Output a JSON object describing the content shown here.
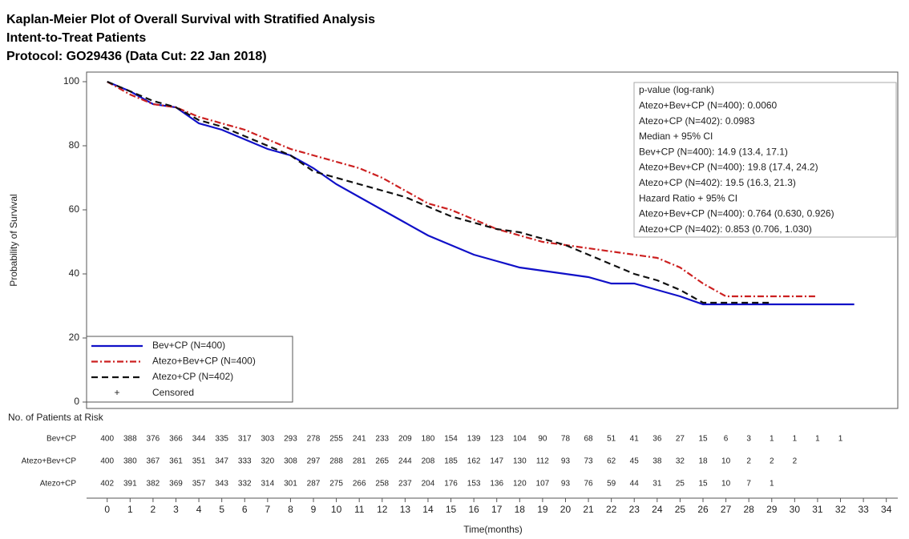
{
  "chart_data": {
    "type": "line",
    "titles": [
      "Kaplan-Meier Plot of Overall Survival with Stratified Analysis",
      "Intent-to-Treat Patients",
      "Protocol: GO29436 (Data Cut: 22 Jan 2018)"
    ],
    "xlabel": "Time(months)",
    "ylabel": "Probability of Survival",
    "xlim": [
      -0.9,
      34.5
    ],
    "ylim": [
      -2,
      103
    ],
    "xticks": [
      0,
      1,
      2,
      3,
      4,
      5,
      6,
      7,
      8,
      9,
      10,
      11,
      12,
      13,
      14,
      15,
      16,
      17,
      18,
      19,
      20,
      21,
      22,
      23,
      24,
      25,
      26,
      27,
      28,
      29,
      30,
      31,
      32,
      33,
      34
    ],
    "yticks": [
      0,
      20,
      40,
      60,
      80,
      100
    ],
    "series": [
      {
        "name": "Bev+CP (N=400)",
        "color": "#1010c8",
        "dash": "none",
        "x": [
          0,
          1,
          2,
          3,
          4,
          5,
          6,
          7,
          8,
          9,
          10,
          11,
          12,
          13,
          14,
          15,
          16,
          17,
          18,
          19,
          20,
          21,
          22,
          23,
          24,
          25,
          26,
          27,
          28,
          29,
          30,
          31,
          32,
          32.6
        ],
        "values": [
          100,
          97,
          93,
          92,
          87,
          85,
          82,
          79,
          77,
          73,
          68,
          64,
          60,
          56,
          52,
          49,
          46,
          44,
          42,
          41,
          40,
          39,
          37,
          37,
          35,
          33,
          30.5,
          30.5,
          30.5,
          30.5,
          30.5,
          30.5,
          30.5,
          30.5
        ]
      },
      {
        "name": "Atezo+Bev+CP (N=400)",
        "color": "#cc2020",
        "dash": "8 3 2 3",
        "x": [
          0,
          1,
          2,
          3,
          4,
          5,
          6,
          7,
          8,
          9,
          10,
          11,
          12,
          13,
          14,
          15,
          16,
          17,
          18,
          19,
          20,
          21,
          22,
          23,
          24,
          25,
          26,
          27,
          28,
          29,
          30,
          31
        ],
        "values": [
          100,
          96,
          93,
          92,
          89,
          87,
          85,
          82,
          79,
          77,
          75,
          73,
          70,
          66,
          62,
          60,
          57,
          54,
          52,
          50,
          49,
          48,
          47,
          46,
          45,
          42,
          37,
          33,
          33,
          33,
          33,
          33
        ]
      },
      {
        "name": "Atezo+CP (N=402)",
        "color": "#111111",
        "dash": "8 5",
        "x": [
          0,
          1,
          2,
          3,
          4,
          5,
          6,
          7,
          8,
          9,
          10,
          11,
          12,
          13,
          14,
          15,
          16,
          17,
          18,
          19,
          20,
          21,
          22,
          23,
          24,
          25,
          26,
          27,
          28,
          29
        ],
        "values": [
          100,
          97,
          94,
          92,
          88,
          86,
          83,
          80,
          77,
          72,
          70,
          68,
          66,
          64,
          61,
          58,
          56,
          54,
          53,
          51,
          49,
          46,
          43,
          40,
          38,
          35,
          31,
          31,
          31,
          31
        ]
      }
    ],
    "censored_symbol": "+",
    "censored_label": "Censored",
    "stats_box": [
      "p-value (log-rank)",
      "Atezo+Bev+CP (N=400): 0.0060",
      "Atezo+CP (N=402): 0.0983",
      "Median + 95% CI",
      "Bev+CP (N=400): 14.9 (13.4, 17.1)",
      "Atezo+Bev+CP (N=400): 19.8 (17.4, 24.2)",
      "Atezo+CP (N=402): 19.5 (16.3, 21.3)",
      "Hazard Ratio + 95% CI",
      "Atezo+Bev+CP (N=400): 0.764 (0.630, 0.926)",
      "Atezo+CP (N=402): 0.853 (0.706, 1.030)"
    ],
    "risk_table": {
      "title": "No. of Patients at Risk",
      "rows": [
        {
          "name": "Bev+CP",
          "values": [
            400,
            388,
            376,
            366,
            344,
            335,
            317,
            303,
            293,
            278,
            255,
            241,
            233,
            209,
            180,
            154,
            139,
            123,
            104,
            90,
            78,
            68,
            51,
            41,
            36,
            27,
            15,
            6,
            3,
            1,
            1,
            1,
            1
          ]
        },
        {
          "name": "Atezo+Bev+CP",
          "values": [
            400,
            380,
            367,
            361,
            351,
            347,
            333,
            320,
            308,
            297,
            288,
            281,
            265,
            244,
            208,
            185,
            162,
            147,
            130,
            112,
            93,
            73,
            62,
            45,
            38,
            32,
            18,
            10,
            2,
            2,
            2
          ]
        },
        {
          "name": "Atezo+CP",
          "values": [
            402,
            391,
            382,
            369,
            357,
            343,
            332,
            314,
            301,
            287,
            275,
            266,
            258,
            237,
            204,
            176,
            153,
            136,
            120,
            107,
            93,
            76,
            59,
            44,
            31,
            25,
            15,
            10,
            7,
            1
          ]
        }
      ]
    }
  }
}
